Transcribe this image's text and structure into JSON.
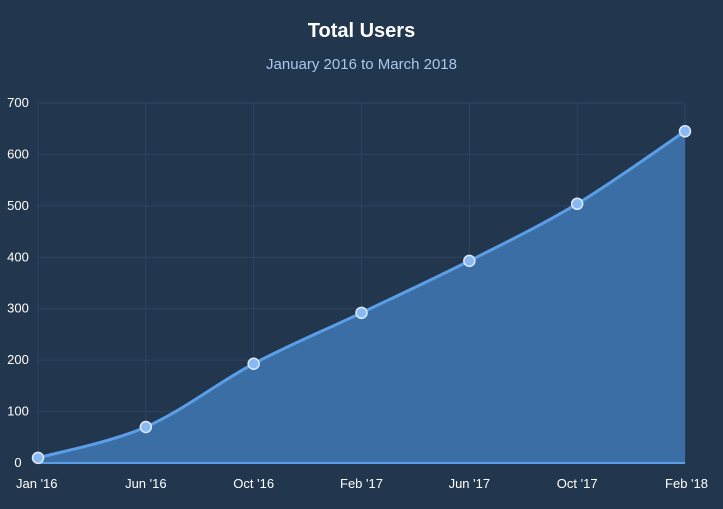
{
  "chart_data": {
    "type": "area",
    "title": "Total Users",
    "subtitle": "January 2016 to March 2018",
    "xlabel": "",
    "ylabel": "",
    "categories": [
      "Jan '16",
      "Jun '16",
      "Oct '16",
      "Feb '17",
      "Jun '17",
      "Oct '17",
      "Feb '18"
    ],
    "values": [
      10,
      70,
      193,
      292,
      393,
      504,
      645
    ],
    "ylim": [
      0,
      700
    ],
    "yticks": [
      0,
      100,
      200,
      300,
      400,
      500,
      600,
      700
    ],
    "grid": true,
    "legend": "none",
    "smooth": true
  },
  "colors": {
    "background": "#22364e",
    "area_fill": "#3a6ea5",
    "line": "#5b9ee6",
    "marker_fill": "#8ab8f0",
    "marker_stroke": "#dbe9fb",
    "grid": "#2c4663",
    "text": "#ffffff",
    "subtitle": "#a9c8ec"
  }
}
